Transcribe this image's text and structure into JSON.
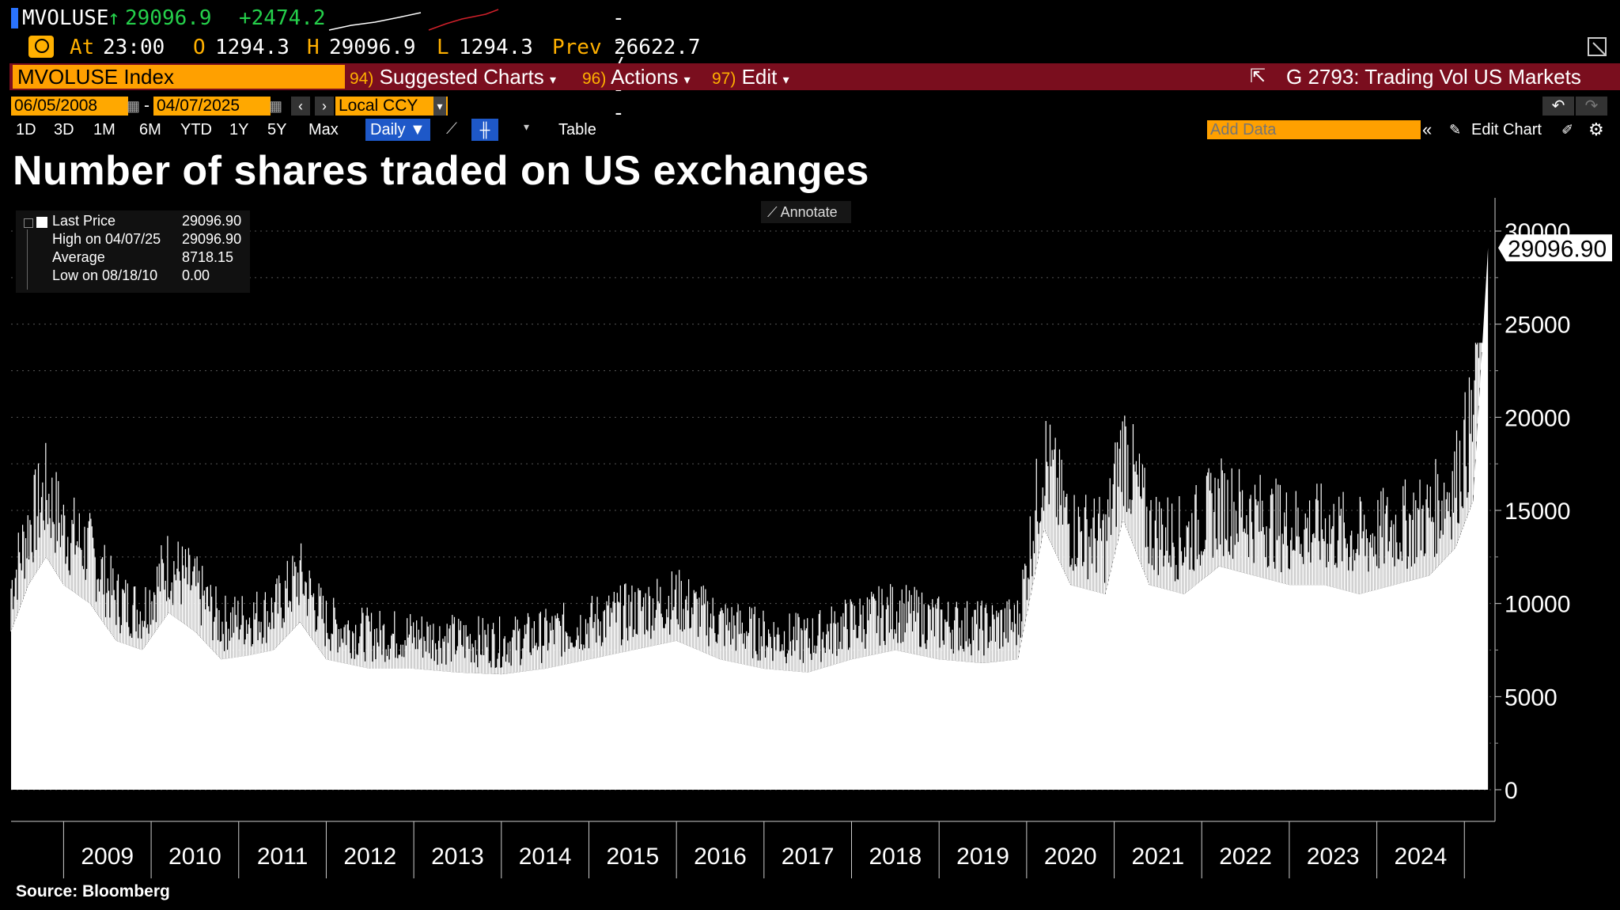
{
  "header": {
    "ticker": "MVOLUSE",
    "last": "29096.9",
    "change": "+2474.2",
    "dashes": "-- / --",
    "at_label": "At",
    "at_time": "23:00",
    "o_label": "O",
    "o_val": "1294.3",
    "h_label": "H",
    "h_val": "29096.9",
    "l_label": "L",
    "l_val": "1294.3",
    "prev_label": "Prev",
    "prev_val": "26622.7"
  },
  "menu": {
    "security": "MVOLUSE Index",
    "suggested_num": "94)",
    "suggested": "Suggested Charts",
    "actions_num": "96)",
    "actions": "Actions",
    "edit_num": "97)",
    "edit": "Edit",
    "page_title": "G 2793: Trading Vol US Markets"
  },
  "toolbar": {
    "start_date": "06/05/2008",
    "end_date": "04/07/2025",
    "currency": "Local CCY",
    "periods": [
      "1D",
      "3D",
      "1M",
      "6M",
      "YTD",
      "1Y",
      "5Y",
      "Max"
    ],
    "frequency": "Daily",
    "table": "Table",
    "add_data_placeholder": "Add Data",
    "edit_chart": "Edit Chart"
  },
  "chart_title": "Number of shares traded on US exchanges",
  "annotate": "Annotate",
  "legend": {
    "rows": [
      {
        "label": "Last Price",
        "value": "29096.90"
      },
      {
        "label": "High on 04/07/25",
        "value": "29096.90"
      },
      {
        "label": "Average",
        "value": "8718.15"
      },
      {
        "label": "Low on 08/18/10",
        "value": "0.00"
      }
    ]
  },
  "last_value_tag": "29096.90",
  "source": "Source: Bloomberg",
  "chart_data": {
    "type": "area",
    "title": "Number of shares traded on US exchanges",
    "ylim": [
      0,
      30000
    ],
    "yticks": [
      "30000",
      "25000",
      "20000",
      "15000",
      "10000",
      "5000",
      "0"
    ],
    "xticks": [
      "2009",
      "2010",
      "2011",
      "2012",
      "2013",
      "2014",
      "2015",
      "2016",
      "2017",
      "2018",
      "2019",
      "2020",
      "2021",
      "2022",
      "2023",
      "2024"
    ],
    "series": [
      {
        "x": [
          2008.4,
          2008.6,
          2008.8,
          2009.0,
          2009.3,
          2009.6,
          2009.9,
          2010.2,
          2010.5,
          2010.8,
          2011.1,
          2011.4,
          2011.7,
          2012.0,
          2012.5,
          2013.0,
          2013.5,
          2014.0,
          2014.5,
          2015.0,
          2015.5,
          2016.0,
          2016.5,
          2017.0,
          2017.5,
          2018.0,
          2018.5,
          2019.0,
          2019.5,
          2019.9,
          2020.2,
          2020.5,
          2020.9,
          2021.1,
          2021.4,
          2021.8,
          2022.2,
          2022.6,
          2023.0,
          2023.4,
          2023.8,
          2024.2,
          2024.6,
          2024.9,
          2025.1,
          2025.27
        ],
        "values": [
          8500,
          11000,
          12500,
          11000,
          10000,
          8000,
          7500,
          9500,
          8500,
          7000,
          7200,
          7500,
          9000,
          7000,
          6500,
          6500,
          6300,
          6200,
          6500,
          7000,
          7500,
          8000,
          7000,
          6500,
          6300,
          7000,
          7500,
          7000,
          6800,
          7000,
          14000,
          11000,
          10500,
          14500,
          11000,
          10500,
          12000,
          11500,
          11000,
          11000,
          10500,
          11000,
          11500,
          13000,
          15500,
          29096.9
        ]
      }
    ]
  }
}
